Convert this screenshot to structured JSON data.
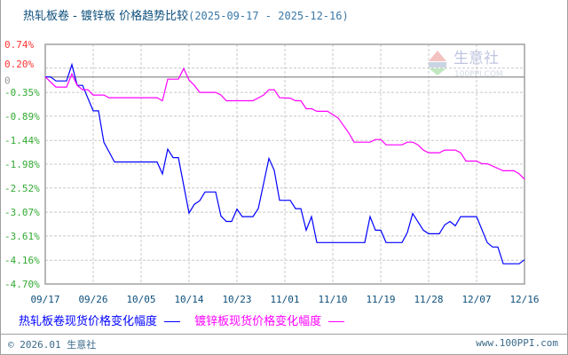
{
  "title": {
    "main": "热轧板卷 - 镀锌板 价格趋势比较",
    "range": "(2025-09-17 - 2025-12-16)"
  },
  "watermark": {
    "logo_text": "PPI",
    "name": "生意社",
    "url": "100PPI.COM"
  },
  "footer": {
    "copyright": "© 2026.01 生意社",
    "site": "www.100PPI.com"
  },
  "chart_data": {
    "type": "line",
    "title": "热轧板卷 - 镀锌板 价格趋势比较",
    "xlabel": "",
    "ylabel": "",
    "xlim": [
      "2025-09-17",
      "2025-12-16"
    ],
    "ylim": [
      -4.7,
      0.74
    ],
    "grid": true,
    "legend_position": "bottom",
    "x_ticks": [
      "09/17",
      "09/26",
      "10/05",
      "10/14",
      "10/23",
      "11/01",
      "11/10",
      "11/19",
      "11/28",
      "12/07",
      "12/16"
    ],
    "y_ticks": [
      {
        "value": 0.74,
        "label": "0.74%",
        "color": "#ff3333"
      },
      {
        "value": 0.2,
        "label": "0.20%",
        "color": "#ff3333"
      },
      {
        "value": 0,
        "label": "0",
        "color": "#999999"
      },
      {
        "value": -0.35,
        "label": "-0.35%",
        "color": "#33aa33"
      },
      {
        "value": -0.89,
        "label": "-0.89%",
        "color": "#33aa33"
      },
      {
        "value": -1.44,
        "label": "-1.44%",
        "color": "#33aa33"
      },
      {
        "value": -1.98,
        "label": "-1.98%",
        "color": "#33aa33"
      },
      {
        "value": -2.52,
        "label": "-2.52%",
        "color": "#33aa33"
      },
      {
        "value": -3.07,
        "label": "-3.07%",
        "color": "#33aa33"
      },
      {
        "value": -3.61,
        "label": "-3.61%",
        "color": "#33aa33"
      },
      {
        "value": -4.16,
        "label": "-4.16%",
        "color": "#33aa33"
      },
      {
        "value": -4.7,
        "label": "-4.70%",
        "color": "#33aa33"
      }
    ],
    "series": [
      {
        "name": "热轧板卷现货价格变化幅度",
        "color": "#0000ff",
        "x": [
          "2025-09-17",
          "2025-09-18",
          "2025-09-19",
          "2025-09-21",
          "2025-09-22",
          "2025-09-23",
          "2025-09-24",
          "2025-09-26",
          "2025-09-27",
          "2025-09-28",
          "2025-09-30",
          "2025-10-08",
          "2025-10-09",
          "2025-10-10",
          "2025-10-11",
          "2025-10-12",
          "2025-10-14",
          "2025-10-15",
          "2025-10-16",
          "2025-10-17",
          "2025-10-19",
          "2025-10-20",
          "2025-10-21",
          "2025-10-22",
          "2025-10-23",
          "2025-10-24",
          "2025-10-26",
          "2025-10-27",
          "2025-10-29",
          "2025-10-30",
          "2025-10-31",
          "2025-11-02",
          "2025-11-03",
          "2025-11-04",
          "2025-11-05",
          "2025-11-06",
          "2025-11-07",
          "2025-11-16",
          "2025-11-17",
          "2025-11-18",
          "2025-11-19",
          "2025-11-20",
          "2025-11-23",
          "2025-11-24",
          "2025-11-25",
          "2025-11-27",
          "2025-11-28",
          "2025-11-30",
          "2025-12-01",
          "2025-12-02",
          "2025-12-03",
          "2025-12-04",
          "2025-12-07",
          "2025-12-09",
          "2025-12-10",
          "2025-12-11",
          "2025-12-12",
          "2025-12-15",
          "2025-12-16"
        ],
        "y": [
          0,
          0,
          -0.09,
          -0.09,
          0.28,
          -0.19,
          -0.19,
          -0.77,
          -0.77,
          -1.48,
          -1.93,
          -1.93,
          -2.2,
          -1.64,
          -1.83,
          -1.83,
          -3.09,
          -2.89,
          -2.81,
          -2.61,
          -2.61,
          -3.16,
          -3.28,
          -3.28,
          -3.0,
          -3.17,
          -3.17,
          -2.99,
          -1.85,
          -2.12,
          -2.8,
          -2.8,
          -2.99,
          -2.99,
          -3.48,
          -3.17,
          -3.76,
          -3.76,
          -3.17,
          -3.48,
          -3.48,
          -3.76,
          -3.76,
          -3.53,
          -3.1,
          -3.48,
          -3.56,
          -3.56,
          -3.36,
          -3.28,
          -3.38,
          -3.17,
          -3.17,
          -3.76,
          -3.86,
          -3.86,
          -4.24,
          -4.24,
          -4.15
        ]
      },
      {
        "name": "镀锌板现货价格变化幅度",
        "color": "#ff00ff",
        "x": [
          "2025-09-17",
          "2025-09-19",
          "2025-09-21",
          "2025-09-22",
          "2025-09-23",
          "2025-09-24",
          "2025-09-25",
          "2025-09-26",
          "2025-09-28",
          "2025-09-29",
          "2025-10-08",
          "2025-10-09",
          "2025-10-10",
          "2025-10-12",
          "2025-10-13",
          "2025-10-14",
          "2025-10-15",
          "2025-10-16",
          "2025-10-19",
          "2025-10-20",
          "2025-10-21",
          "2025-10-26",
          "2025-10-28",
          "2025-10-29",
          "2025-10-30",
          "2025-10-31",
          "2025-11-02",
          "2025-11-03",
          "2025-11-04",
          "2025-11-05",
          "2025-11-06",
          "2025-11-07",
          "2025-11-09",
          "2025-11-11",
          "2025-11-13",
          "2025-11-14",
          "2025-11-17",
          "2025-11-18",
          "2025-11-19",
          "2025-11-20",
          "2025-11-23",
          "2025-11-24",
          "2025-11-25",
          "2025-11-26",
          "2025-11-27",
          "2025-11-28",
          "2025-11-30",
          "2025-12-01",
          "2025-12-03",
          "2025-12-04",
          "2025-12-05",
          "2025-12-07",
          "2025-12-08",
          "2025-12-09",
          "2025-12-12",
          "2025-12-14",
          "2025-12-15",
          "2025-12-16"
        ],
        "y": [
          0,
          -0.23,
          -0.23,
          0.07,
          -0.19,
          -0.29,
          -0.29,
          -0.41,
          -0.41,
          -0.47,
          -0.47,
          -0.54,
          -0.05,
          -0.05,
          0.19,
          -0.07,
          -0.19,
          -0.35,
          -0.35,
          -0.41,
          -0.54,
          -0.54,
          -0.41,
          -0.29,
          -0.29,
          -0.47,
          -0.48,
          -0.54,
          -0.54,
          -0.72,
          -0.72,
          -0.78,
          -0.78,
          -0.93,
          -1.27,
          -1.48,
          -1.48,
          -1.42,
          -1.42,
          -1.54,
          -1.54,
          -1.48,
          -1.48,
          -1.54,
          -1.66,
          -1.72,
          -1.72,
          -1.66,
          -1.66,
          -1.72,
          -1.91,
          -1.91,
          -1.97,
          -1.97,
          -2.13,
          -2.13,
          -2.2,
          -2.32
        ]
      }
    ]
  }
}
